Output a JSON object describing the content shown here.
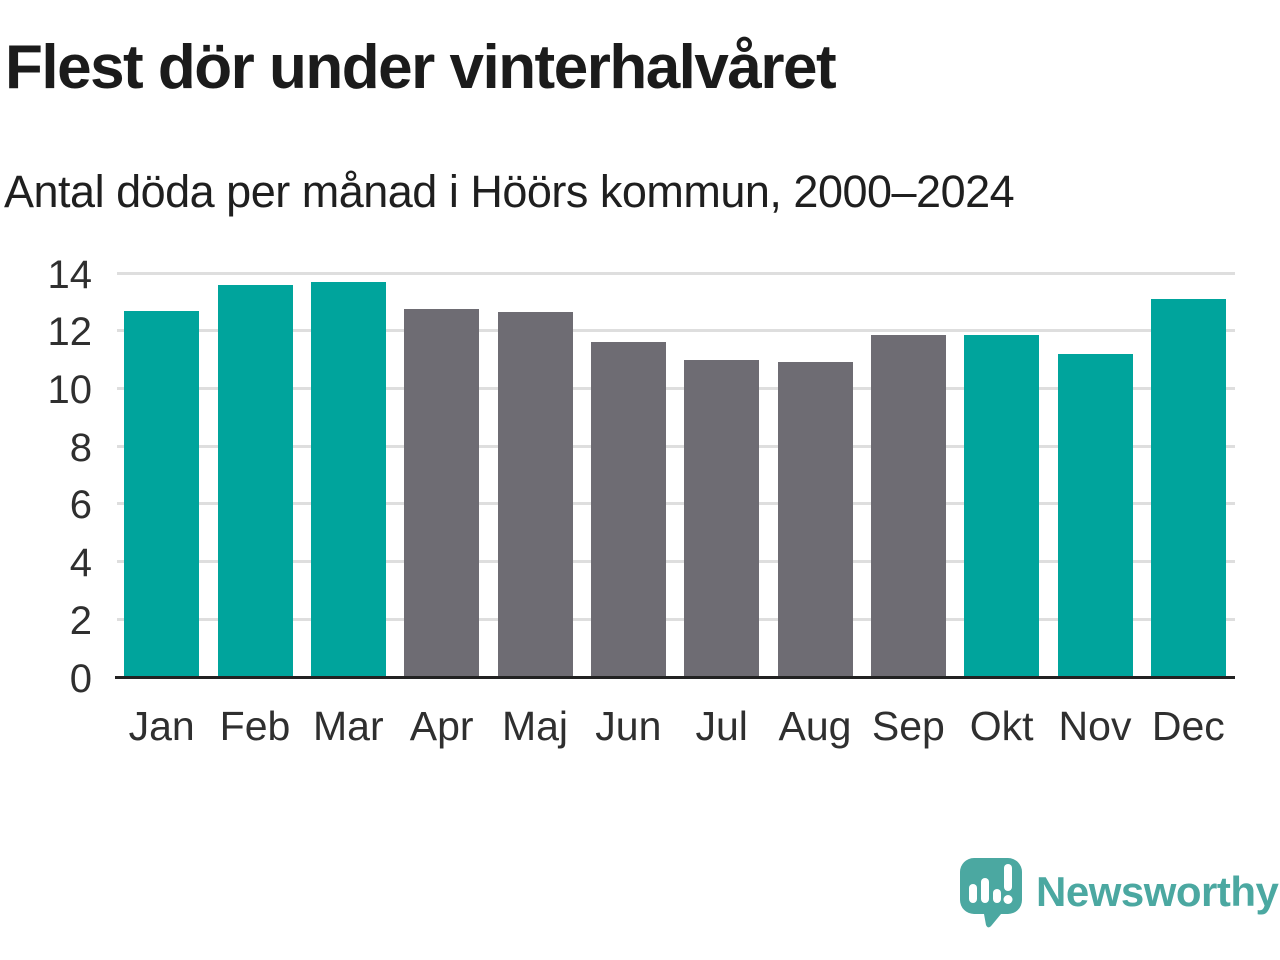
{
  "header": {
    "title": "Flest dör under vinterhalvåret",
    "subtitle": "Antal döda per månad i Höörs kommun, 2000–2024"
  },
  "chart_data": {
    "type": "bar",
    "title": "Flest dör under vinterhalvåret",
    "subtitle": "Antal döda per månad i Höörs kommun, 2000–2024",
    "categories": [
      "Jan",
      "Feb",
      "Mar",
      "Apr",
      "Maj",
      "Jun",
      "Jul",
      "Aug",
      "Sep",
      "Okt",
      "Nov",
      "Dec"
    ],
    "values": [
      12.7,
      13.6,
      13.7,
      12.75,
      12.65,
      11.6,
      11.0,
      10.9,
      11.85,
      11.85,
      11.2,
      13.1
    ],
    "bar_colors": [
      "teal",
      "teal",
      "teal",
      "gray",
      "gray",
      "gray",
      "gray",
      "gray",
      "gray",
      "teal",
      "teal",
      "teal"
    ],
    "colors": {
      "teal": "#00a49c",
      "gray": "#6e6c73"
    },
    "highlight_note": "winter half-year months (Jan-Mar, Okt-Dec) in teal, summer months in gray",
    "xlabel": "",
    "ylabel": "",
    "ylim": [
      0,
      14
    ],
    "yticks": [
      0,
      2,
      4,
      6,
      8,
      10,
      12,
      14
    ],
    "grid": "horizontal",
    "legend": "none",
    "gridline_color": "#dedede",
    "axis_line_color": "#222222"
  },
  "branding": {
    "logo_text": "Newsworthy",
    "logo_color": "#4ba8a1",
    "logo_icon": "speech-bubble-bar-chart-icon"
  }
}
